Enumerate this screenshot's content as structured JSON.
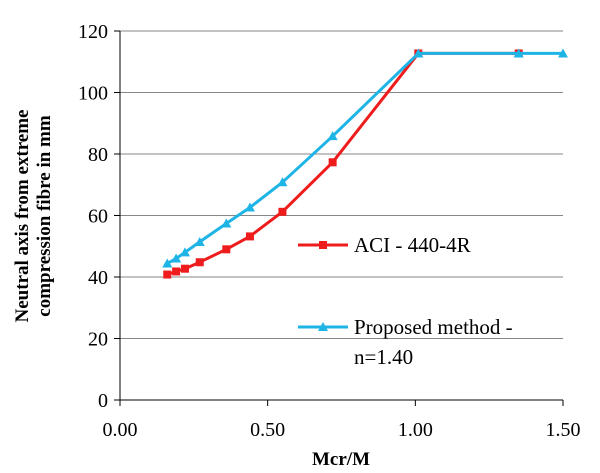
{
  "chart_data": {
    "type": "line",
    "title": "",
    "xlabel": "Mcr/M",
    "ylabel_lines": [
      "Neutral axis from extreme",
      "compression fibre  in mm"
    ],
    "xlim": [
      0,
      1.5
    ],
    "ylim": [
      0,
      120
    ],
    "x_ticks": [
      "0.00",
      "0.50",
      "1.00",
      "1.50"
    ],
    "y_ticks": [
      "0",
      "20",
      "40",
      "60",
      "80",
      "100",
      "120"
    ],
    "grid": "horizontal",
    "legend_position": "right-middle",
    "series": [
      {
        "name": "ACI - 440-4R",
        "color": "#ee1c1c",
        "marker": "square",
        "x": [
          0.16,
          0.19,
          0.22,
          0.27,
          0.36,
          0.44,
          0.55,
          0.72,
          1.01,
          1.35
        ],
        "y": [
          40.8,
          41.8,
          42.7,
          44.8,
          49.0,
          53.2,
          61.2,
          77.3,
          112.7,
          112.7
        ]
      },
      {
        "name_lines": [
          "Proposed method -",
          "n=1.40"
        ],
        "color": "#1eb4e6",
        "marker": "triangle",
        "x": [
          0.16,
          0.19,
          0.22,
          0.27,
          0.36,
          0.44,
          0.55,
          0.72,
          1.01,
          1.35,
          1.5
        ],
        "y": [
          44.4,
          46.0,
          48.0,
          51.4,
          57.4,
          62.6,
          70.8,
          85.8,
          112.7,
          112.7,
          112.7
        ]
      }
    ]
  }
}
